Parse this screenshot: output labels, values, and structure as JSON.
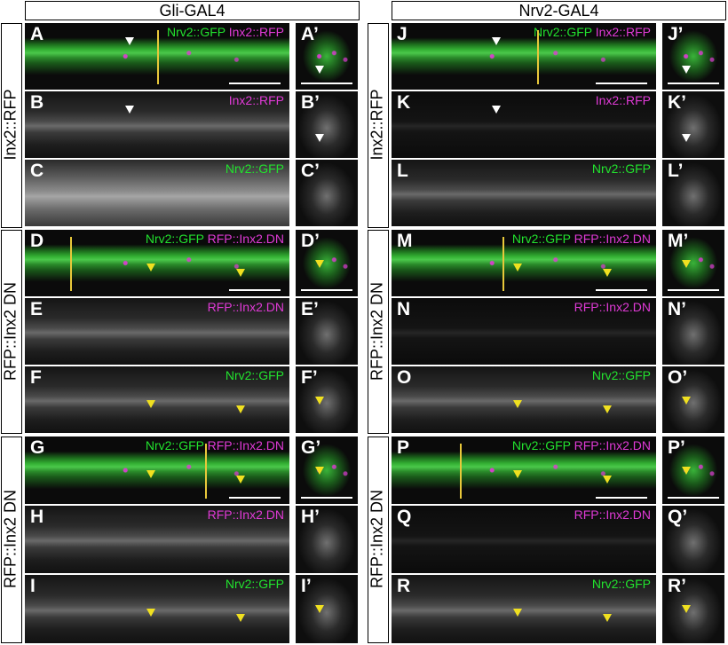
{
  "headers": [
    "Gli-GAL4",
    "Nrv2-GAL4"
  ],
  "row_labels": [
    "Inx2::RFP",
    "RFP::Inx2 DN",
    "RFP::Inx2 DN",
    "Inx2::RFP",
    "RFP::Inx2 DN",
    "RFP::Inx2 DN"
  ],
  "panels": [
    {
      "id": "A",
      "letter": "A",
      "green": "Nrv2::GFP",
      "mag": "Inx2::RFP",
      "tex": "merge"
    },
    {
      "id": "A2",
      "letter": "A’",
      "green": "",
      "mag": "",
      "tex": "merge-small"
    },
    {
      "id": "B",
      "letter": "B",
      "green": "",
      "mag": "Inx2::RFP",
      "tex": "gray"
    },
    {
      "id": "B2",
      "letter": "B’",
      "green": "",
      "mag": "",
      "tex": "gray-small"
    },
    {
      "id": "C",
      "letter": "C",
      "green": "Nrv2::GFP",
      "mag": "",
      "tex": "gray-bright"
    },
    {
      "id": "C2",
      "letter": "C’",
      "green": "",
      "mag": "",
      "tex": "gray-small"
    },
    {
      "id": "D",
      "letter": "D",
      "green": "Nrv2::GFP",
      "mag": "RFP::Inx2.DN",
      "tex": "merge"
    },
    {
      "id": "D2",
      "letter": "D’",
      "green": "",
      "mag": "",
      "tex": "merge-small"
    },
    {
      "id": "E",
      "letter": "E",
      "green": "",
      "mag": "RFP::Inx2.DN",
      "tex": "gray"
    },
    {
      "id": "E2",
      "letter": "E’",
      "green": "",
      "mag": "",
      "tex": "gray-small"
    },
    {
      "id": "F",
      "letter": "F",
      "green": "Nrv2::GFP",
      "mag": "",
      "tex": "gray"
    },
    {
      "id": "F2",
      "letter": "F’",
      "green": "",
      "mag": "",
      "tex": "gray-small"
    },
    {
      "id": "G",
      "letter": "G",
      "green": "Nrv2::GFP",
      "mag": "RFP::Inx2.DN",
      "tex": "merge"
    },
    {
      "id": "G2",
      "letter": "G’",
      "green": "",
      "mag": "",
      "tex": "merge-small"
    },
    {
      "id": "H",
      "letter": "H",
      "green": "",
      "mag": "RFP::Inx2.DN",
      "tex": "gray"
    },
    {
      "id": "H2",
      "letter": "H’",
      "green": "",
      "mag": "",
      "tex": "gray-small"
    },
    {
      "id": "I",
      "letter": "I",
      "green": "Nrv2::GFP",
      "mag": "",
      "tex": "gray"
    },
    {
      "id": "I2",
      "letter": "I’",
      "green": "",
      "mag": "",
      "tex": "gray-small"
    },
    {
      "id": "J",
      "letter": "J",
      "green": "Nrv2::GFP",
      "mag": "Inx2::RFP",
      "tex": "merge"
    },
    {
      "id": "J2",
      "letter": "J’",
      "green": "",
      "mag": "",
      "tex": "merge-small"
    },
    {
      "id": "K",
      "letter": "K",
      "green": "",
      "mag": "Inx2::RFP",
      "tex": "dark"
    },
    {
      "id": "K2",
      "letter": "K’",
      "green": "",
      "mag": "",
      "tex": "gray-small"
    },
    {
      "id": "L",
      "letter": "L",
      "green": "Nrv2::GFP",
      "mag": "",
      "tex": "gray"
    },
    {
      "id": "L2",
      "letter": "L’",
      "green": "",
      "mag": "",
      "tex": "gray-small"
    },
    {
      "id": "M",
      "letter": "M",
      "green": "Nrv2::GFP",
      "mag": "RFP::Inx2.DN",
      "tex": "merge"
    },
    {
      "id": "M2",
      "letter": "M’",
      "green": "",
      "mag": "",
      "tex": "merge-small"
    },
    {
      "id": "N",
      "letter": "N",
      "green": "",
      "mag": "RFP::Inx2.DN",
      "tex": "dark"
    },
    {
      "id": "N2",
      "letter": "N’",
      "green": "",
      "mag": "",
      "tex": "gray-small"
    },
    {
      "id": "O",
      "letter": "O",
      "green": "Nrv2::GFP",
      "mag": "",
      "tex": "gray"
    },
    {
      "id": "O2",
      "letter": "O’",
      "green": "",
      "mag": "",
      "tex": "gray-small"
    },
    {
      "id": "P",
      "letter": "P",
      "green": "Nrv2::GFP",
      "mag": "RFP::Inx2.DN",
      "tex": "merge"
    },
    {
      "id": "P2",
      "letter": "P’",
      "green": "",
      "mag": "",
      "tex": "merge-small"
    },
    {
      "id": "Q",
      "letter": "Q",
      "green": "",
      "mag": "RFP::Inx2.DN",
      "tex": "dark"
    },
    {
      "id": "Q2",
      "letter": "Q’",
      "green": "",
      "mag": "",
      "tex": "gray-small"
    },
    {
      "id": "R",
      "letter": "R",
      "green": "Nrv2::GFP",
      "mag": "",
      "tex": "gray"
    },
    {
      "id": "R2",
      "letter": "R’",
      "green": "",
      "mag": "",
      "tex": "gray-small"
    }
  ],
  "colors": {
    "green": "#22e22e",
    "magenta": "#e03ad6",
    "marker_yellow": "#f0e020",
    "marker_white": "#ffffff",
    "guide_line": "#e8c83a"
  }
}
